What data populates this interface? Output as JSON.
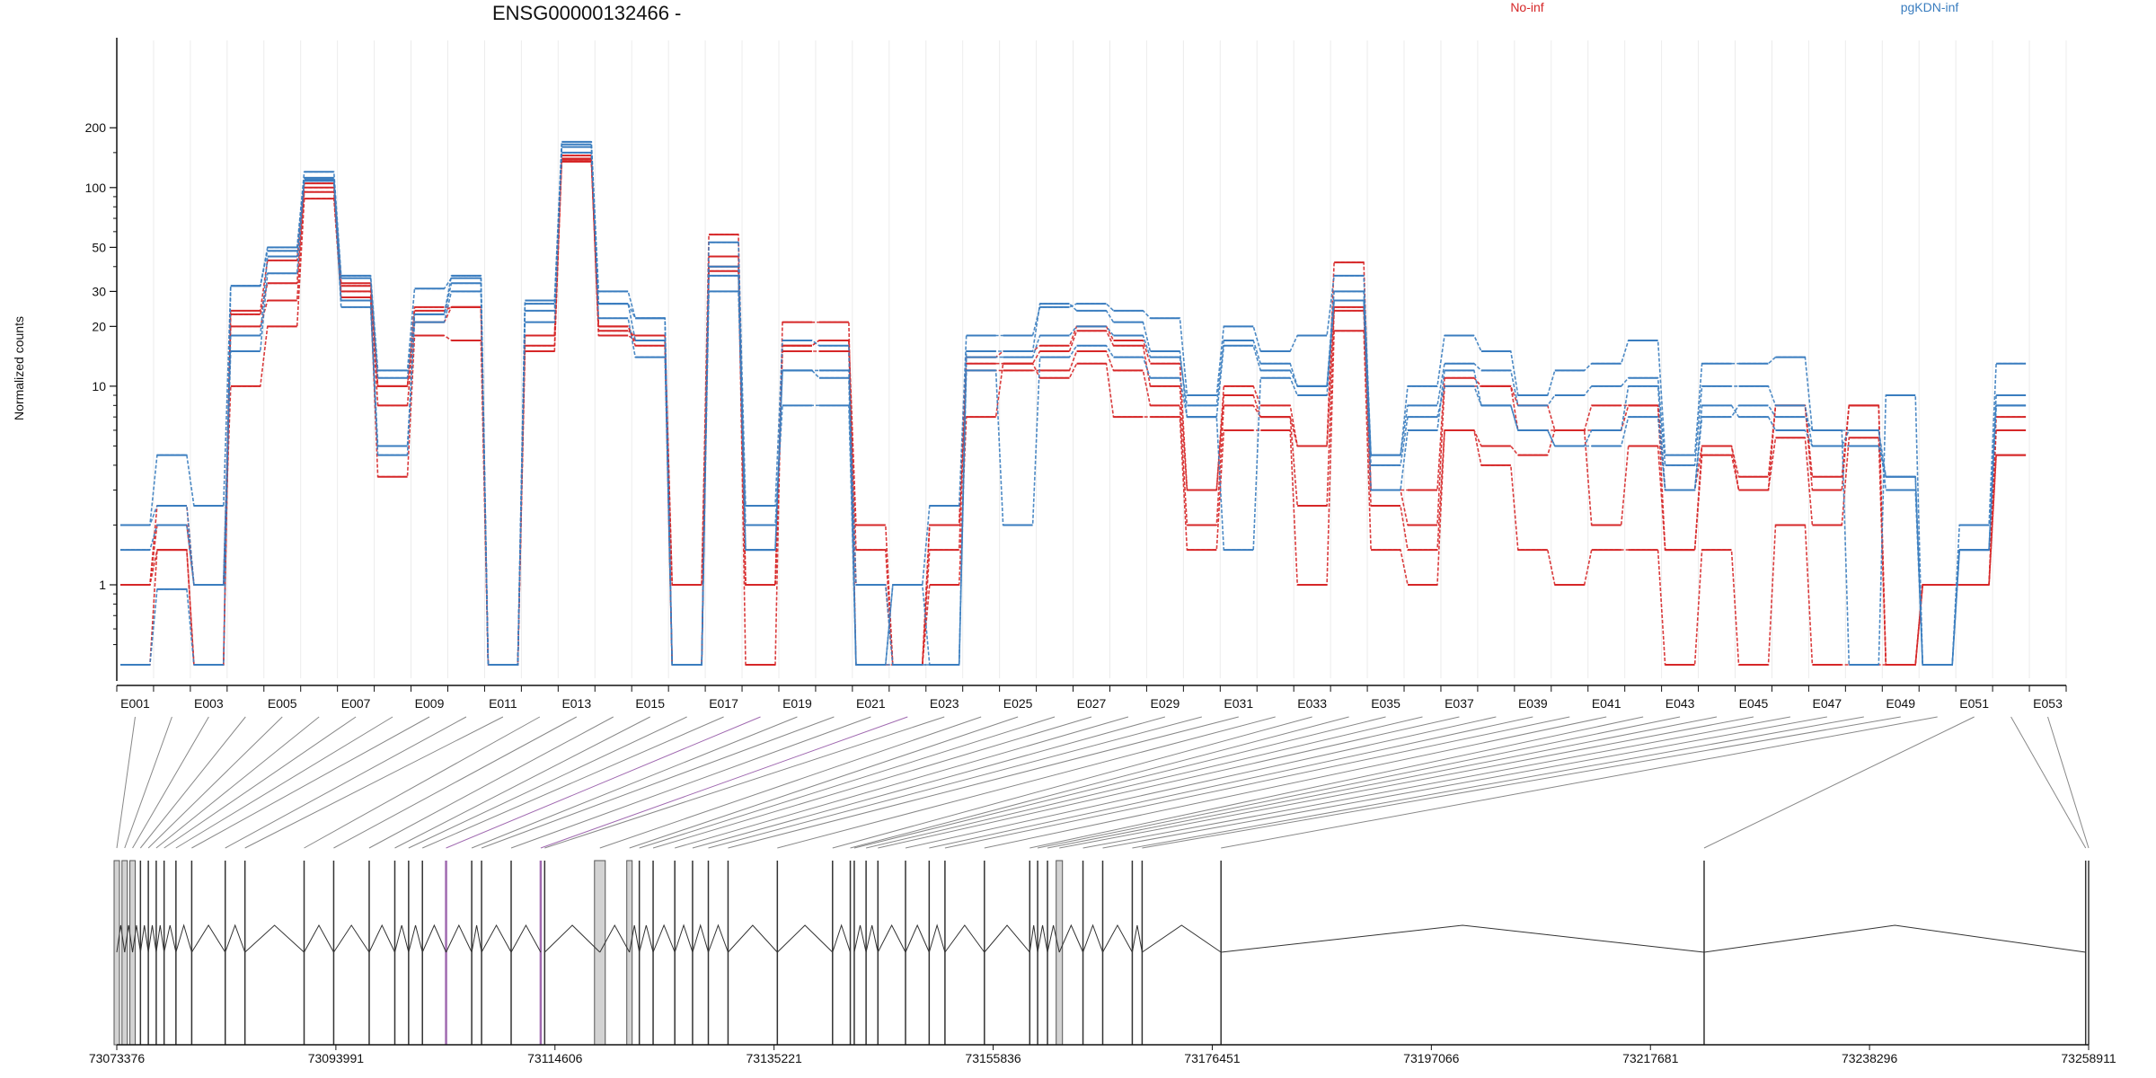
{
  "chart_data": {
    "type": "line",
    "title": "ENSG00000132466 -",
    "ylabel": "Normalized counts",
    "y_scale": "log",
    "yticks": [
      "1",
      "10",
      "20",
      "30",
      "50",
      "100",
      "200"
    ],
    "legend": [
      {
        "name": "No-inf",
        "color": "#d62728"
      },
      {
        "name": "pgKDN-inf",
        "color": "#3a7dbf"
      }
    ],
    "exon_labels_shown": [
      "E001",
      "E003",
      "E005",
      "E007",
      "E009",
      "E011",
      "E013",
      "E015",
      "E017",
      "E019",
      "E021",
      "E023",
      "E025",
      "E027",
      "E029",
      "E031",
      "E033",
      "E035",
      "E037",
      "E039",
      "E041",
      "E043",
      "E045",
      "E047",
      "E049",
      "E051",
      "E053"
    ],
    "genomic_coords": [
      "73073376",
      "73093991",
      "73114606",
      "73135221",
      "73155836",
      "73176451",
      "73197066",
      "73217681",
      "73238296",
      "73258911"
    ],
    "series": [
      {
        "name": "No-inf",
        "values": [
          1.0,
          2.5,
          1.0,
          10,
          20,
          88,
          28,
          3.5,
          18,
          17,
          0.4,
          15,
          145,
          18,
          17,
          0.4,
          45,
          0.4,
          21,
          21,
          0.4,
          0.4,
          1.0,
          7,
          13,
          11,
          13,
          7,
          7,
          1.5,
          6,
          6,
          1.0,
          19,
          1.5,
          1.0,
          6,
          4,
          1.5,
          1.0,
          1.5,
          1.5,
          0.4,
          1.5,
          0.4,
          2.0,
          0.4,
          0.4,
          0.4,
          1.0,
          1.0,
          4.5
        ]
      },
      {
        "name": "No-inf",
        "values": [
          1.0,
          2.0,
          1.0,
          20,
          27,
          95,
          30,
          8,
          21,
          25,
          0.4,
          16,
          138,
          20,
          16,
          0.4,
          38,
          1.0,
          15,
          15,
          1.0,
          0.4,
          1.5,
          12,
          12,
          12,
          15,
          12,
          8,
          2.0,
          8,
          7,
          2.5,
          24,
          2.5,
          1.5,
          6,
          5,
          4.5,
          6,
          2.0,
          5,
          1.5,
          4.5,
          3.0,
          5.5,
          2.0,
          5.5,
          0.4,
          1.0,
          1.0,
          4.5
        ]
      },
      {
        "name": "No-inf",
        "values": [
          1.0,
          1.5,
          0.4,
          23,
          33,
          100,
          32,
          10,
          25,
          25,
          0.4,
          18,
          140,
          19,
          18,
          1.0,
          40,
          1.0,
          16,
          17,
          1.5,
          0.4,
          2.0,
          13,
          13,
          15,
          19,
          16,
          10,
          3.0,
          9,
          7,
          5,
          25,
          3.0,
          2.0,
          10,
          10,
          8,
          6,
          6,
          8,
          1.5,
          5,
          3.0,
          8,
          3.0,
          8,
          0.4,
          1.0,
          1.0,
          6
        ]
      },
      {
        "name": "No-inf",
        "values": [
          0.4,
          1.5,
          0.4,
          24,
          43,
          105,
          33,
          10,
          24,
          25,
          0.4,
          18,
          135,
          20,
          17,
          1.0,
          58,
          1.0,
          16,
          17,
          2.0,
          0.4,
          2.0,
          14,
          15,
          16,
          20,
          17,
          13,
          3.0,
          10,
          8,
          5,
          42,
          3.0,
          3.0,
          11,
          10,
          6,
          6,
          8,
          8,
          3.0,
          5,
          3.5,
          8,
          3.5,
          8,
          0.4,
          1.0,
          1.0,
          7
        ]
      },
      {
        "name": "pgKDN-inf",
        "values": [
          2.0,
          4.5,
          2.5,
          32,
          50,
          120,
          36,
          12,
          31,
          35,
          0.4,
          27,
          170,
          30,
          22,
          0.4,
          53,
          2.5,
          17,
          16,
          0.4,
          1.0,
          2.5,
          18,
          18,
          25,
          26,
          24,
          22,
          9,
          20,
          15,
          18,
          36,
          4.5,
          10,
          18,
          15,
          9,
          12,
          13,
          17,
          4.5,
          13,
          13,
          14,
          6,
          0.4,
          9,
          0.4,
          2.0,
          13
        ]
      },
      {
        "name": "pgKDN-inf",
        "values": [
          1.5,
          2.0,
          1.0,
          18,
          45,
          110,
          35,
          11,
          23,
          33,
          0.4,
          24,
          160,
          26,
          22,
          0.4,
          40,
          1.5,
          12,
          12,
          1.0,
          0.4,
          0.4,
          14,
          14,
          18,
          20,
          18,
          14,
          8,
          17,
          13,
          10,
          30,
          4.5,
          8,
          13,
          12,
          8,
          9,
          10,
          11,
          4.0,
          10,
          10,
          8,
          5,
          6,
          3.5,
          0.4,
          1.5,
          9
        ]
      },
      {
        "name": "pgKDN-inf",
        "values": [
          2.0,
          2.5,
          1.0,
          15,
          37,
          108,
          27,
          5,
          21,
          30,
          0.4,
          21,
          165,
          22,
          14,
          0.4,
          36,
          2.0,
          8,
          8,
          0.4,
          0.4,
          0.4,
          12,
          2.0,
          14,
          16,
          14,
          11,
          7,
          1.5,
          11,
          9,
          27,
          4.0,
          7,
          10,
          8,
          6,
          5,
          5,
          7,
          3.0,
          8,
          7,
          6,
          5,
          5,
          3.5,
          0.4,
          1.5,
          8
        ]
      },
      {
        "name": "pgKDN-inf",
        "values": [
          0.4,
          0.95,
          0.4,
          32,
          48,
          112,
          25,
          4.5,
          23,
          36,
          0.4,
          26,
          150,
          26,
          17,
          0.4,
          30,
          1.5,
          12,
          11,
          0.4,
          1.0,
          0.4,
          15,
          15,
          26,
          24,
          21,
          15,
          7,
          16,
          12,
          10,
          27,
          3.0,
          6,
          12,
          8,
          6,
          5,
          6,
          10,
          3.0,
          7,
          8,
          7,
          6,
          6,
          3.0,
          0.4,
          1.5,
          8
        ]
      }
    ],
    "special_exons": [
      "E018",
      "E022"
    ],
    "gene_model": {
      "connector_color": "#888888",
      "special_connector_color": "#a06ab0",
      "intron_color": "#333333",
      "exon_fill": "#d3d3d3"
    }
  }
}
